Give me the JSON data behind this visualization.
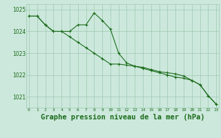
{
  "x": [
    0,
    1,
    2,
    3,
    4,
    5,
    6,
    7,
    8,
    9,
    10,
    11,
    12,
    13,
    14,
    15,
    16,
    17,
    18,
    19,
    20,
    21,
    22,
    23
  ],
  "line_spiky": [
    1024.7,
    1024.7,
    1024.3,
    1024.0,
    1024.0,
    1024.0,
    1024.3,
    1024.3,
    1024.85,
    1024.5,
    1024.1,
    1023.0,
    1022.55,
    1022.4,
    1022.35,
    1022.25,
    1022.15,
    1022.1,
    1022.05,
    1021.95,
    1021.75,
    1021.55,
    1021.05,
    1020.65
  ],
  "line_straight": [
    1024.7,
    1024.7,
    1024.3,
    1024.0,
    1024.0,
    1023.75,
    1023.5,
    1023.25,
    1023.0,
    1022.75,
    1022.5,
    1022.5,
    1022.45,
    1022.4,
    1022.3,
    1022.2,
    1022.1,
    1022.0,
    1021.9,
    1021.85,
    1021.75,
    1021.55,
    1021.05,
    1020.65
  ],
  "line_color": "#1a6b1a",
  "bg_color": "#cce8dc",
  "grid_color": "#9ec8b0",
  "title": "Graphe pression niveau de la mer (hPa)",
  "ylim_min": 1020.5,
  "ylim_max": 1025.25,
  "yticks": [
    1021,
    1022,
    1023,
    1024,
    1025
  ],
  "title_fontsize": 7.5
}
